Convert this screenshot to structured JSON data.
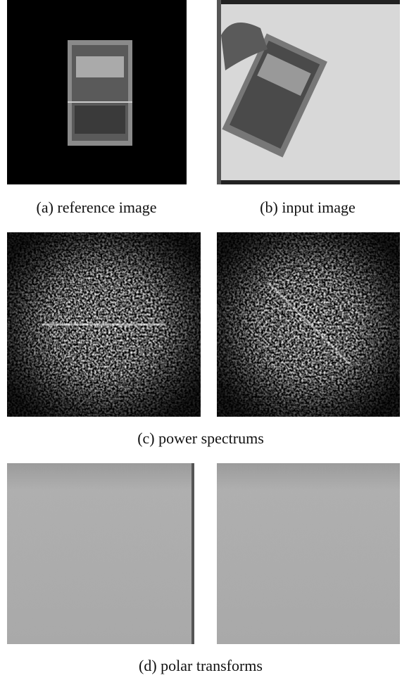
{
  "figure": {
    "captions": [
      "(a) reference image",
      "(b) input image",
      "(c) power spectrums",
      "(d) polar transforms"
    ]
  }
}
